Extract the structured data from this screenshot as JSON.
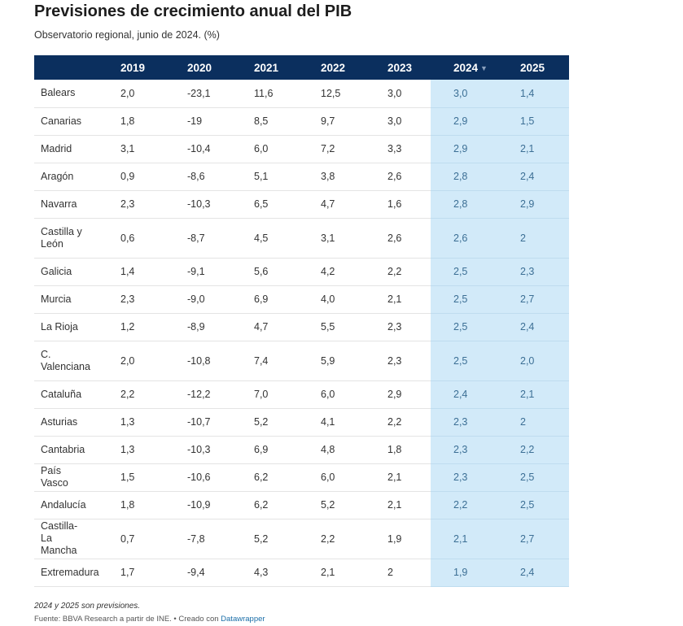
{
  "title": "Previsiones de crecimiento anual del PIB",
  "subtitle": "Observatorio regional, junio de 2024. (%)",
  "notes": "2024 y 2025 son previsiones.",
  "source_text": "Fuente: BBVA Research a partir de INE. • Creado con",
  "source_link": "Datawrapper",
  "colors": {
    "header_bg": "#0b2f5e",
    "highlight_bg": "#d2eaf9",
    "highlight_text": "#3c6f95"
  },
  "sort_indicator": "▼",
  "chart_data": {
    "type": "table",
    "columns": [
      "",
      "2019",
      "2020",
      "2021",
      "2022",
      "2023",
      "2024",
      "2025"
    ],
    "sorted_column": "2024",
    "highlighted_columns": [
      "2024",
      "2025"
    ],
    "rows": [
      [
        "Balears",
        "2,0",
        "-23,1",
        "11,6",
        "12,5",
        "3,0",
        "3,0",
        "1,4"
      ],
      [
        "Canarias",
        "1,8",
        "-19",
        "8,5",
        "9,7",
        "3,0",
        "2,9",
        "1,5"
      ],
      [
        "Madrid",
        "3,1",
        "-10,4",
        "6,0",
        "7,2",
        "3,3",
        "2,9",
        "2,1"
      ],
      [
        "Aragón",
        "0,9",
        "-8,6",
        "5,1",
        "3,8",
        "2,6",
        "2,8",
        "2,4"
      ],
      [
        "Navarra",
        "2,3",
        "-10,3",
        "6,5",
        "4,7",
        "1,6",
        "2,8",
        "2,9"
      ],
      [
        "Castilla y León",
        "0,6",
        "-8,7",
        "4,5",
        "3,1",
        "2,6",
        "2,6",
        "2"
      ],
      [
        "Galicia",
        "1,4",
        "-9,1",
        "5,6",
        "4,2",
        "2,2",
        "2,5",
        "2,3"
      ],
      [
        "Murcia",
        "2,3",
        "-9,0",
        "6,9",
        "4,0",
        "2,1",
        "2,5",
        "2,7"
      ],
      [
        "La Rioja",
        "1,2",
        "-8,9",
        "4,7",
        "5,5",
        "2,3",
        "2,5",
        "2,4"
      ],
      [
        "C. Valenciana",
        "2,0",
        "-10,8",
        "7,4",
        "5,9",
        "2,3",
        "2,5",
        "2,0"
      ],
      [
        "Cataluña",
        "2,2",
        "-12,2",
        "7,0",
        "6,0",
        "2,9",
        "2,4",
        "2,1"
      ],
      [
        "Asturias",
        "1,3",
        "-10,7",
        "5,2",
        "4,1",
        "2,2",
        "2,3",
        "2"
      ],
      [
        "Cantabria",
        "1,3",
        "-10,3",
        "6,9",
        "4,8",
        "1,8",
        "2,3",
        "2,2"
      ],
      [
        "País Vasco",
        "1,5",
        "-10,6",
        "6,2",
        "6,0",
        "2,1",
        "2,3",
        "2,5"
      ],
      [
        "Andalucía",
        "1,8",
        "-10,9",
        "6,2",
        "5,2",
        "2,1",
        "2,2",
        "2,5"
      ],
      [
        "Castilla-La Mancha",
        "0,7",
        "-7,8",
        "5,2",
        "2,2",
        "1,9",
        "2,1",
        "2,7"
      ],
      [
        "Extremadura",
        "1,7",
        "-9,4",
        "4,3",
        "2,1",
        "2",
        "1,9",
        "2,4"
      ]
    ]
  }
}
